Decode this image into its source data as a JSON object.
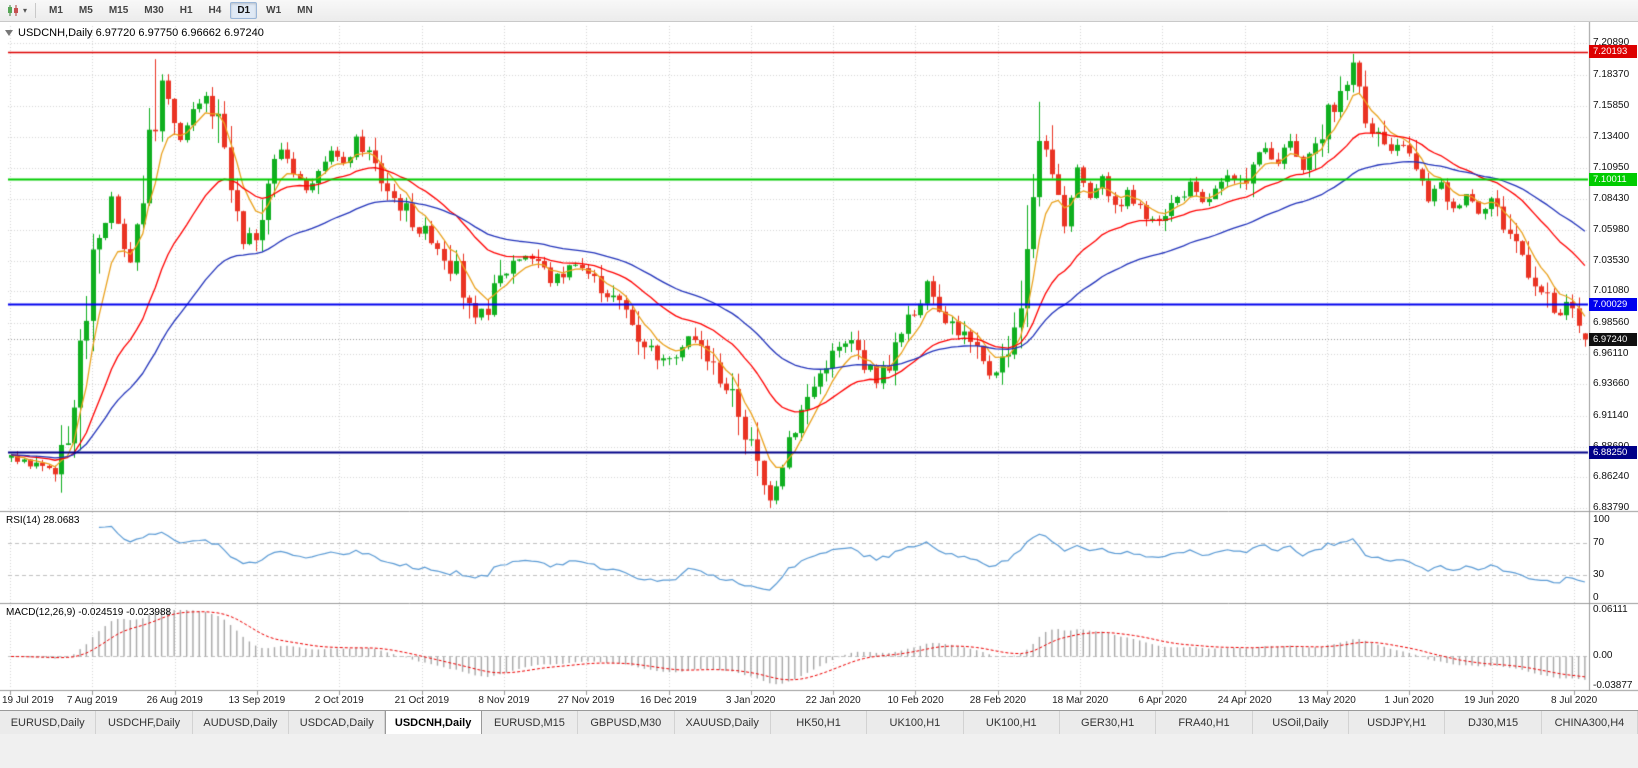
{
  "toolbar": {
    "chart_type_icon": "candlestick-chart-icon",
    "dropdown_icon": "chevron-down-icon",
    "timeframes": [
      {
        "label": "M1",
        "active": false
      },
      {
        "label": "M5",
        "active": false
      },
      {
        "label": "M15",
        "active": false
      },
      {
        "label": "M30",
        "active": false
      },
      {
        "label": "H1",
        "active": false
      },
      {
        "label": "H4",
        "active": false
      },
      {
        "label": "D1",
        "active": true
      },
      {
        "label": "W1",
        "active": false
      },
      {
        "label": "MN",
        "active": false
      }
    ]
  },
  "chart": {
    "title": "USDCNH,Daily 6.97720 6.97750 6.96662 6.97240",
    "symbol": "USDCNH",
    "period": "Daily",
    "price_axis_labels": [
      "7.20890",
      "7.18370",
      "7.15850",
      "7.13400",
      "7.10950",
      "7.08430",
      "7.05980",
      "7.03530",
      "7.01080",
      "6.98560",
      "6.96110",
      "6.93660",
      "6.91140",
      "6.88690",
      "6.86240",
      "6.83790"
    ],
    "date_axis_labels": [
      "19 Jul 2019",
      "7 Aug 2019",
      "26 Aug 2019",
      "13 Sep 2019",
      "2 Oct 2019",
      "21 Oct 2019",
      "8 Nov 2019",
      "27 Nov 2019",
      "16 Dec 2019",
      "3 Jan 2020",
      "22 Jan 2020",
      "10 Feb 2020",
      "28 Feb 2020",
      "18 Mar 2020",
      "6 Apr 2020",
      "24 Apr 2020",
      "13 May 2020",
      "1 Jun 2020",
      "19 Jun 2020",
      "8 Jul 2020"
    ],
    "levels": [
      {
        "label": "7.20193",
        "price": 7.20193,
        "color": "#dd0000",
        "width": 1.4
      },
      {
        "label": "7.10011",
        "price": 7.10011,
        "color": "#00cc00",
        "width": 2
      },
      {
        "label": "7.00029",
        "price": 7.00029,
        "color": "#0000ee",
        "width": 2
      },
      {
        "label": "6.88250",
        "price": 6.8825,
        "color": "#000088",
        "width": 2.2
      }
    ],
    "current_price": {
      "label": "6.97240",
      "price": 6.9724
    },
    "colors": {
      "up": "#0faf1f",
      "down": "#ea3323",
      "ma_fast": "#eaa21e",
      "ma_mid": "#ff0000",
      "ma_slow": "#2233bb",
      "grid": "#d6d6d6",
      "rsi_line": "#5b9bd5",
      "macd_hist": "#a8a8a8",
      "macd_signal": "#ee0000"
    }
  },
  "rsi_panel": {
    "label": "RSI(14) 28.0683",
    "value": "28.0683",
    "axis_labels": [
      "100",
      "70",
      "30",
      "0"
    ],
    "levels": [
      70,
      30
    ]
  },
  "macd_panel": {
    "label": "MACD(12,26,9) -0.024519 -0.023988",
    "values": [
      "-0.024519",
      "-0.023988"
    ],
    "axis_labels": [
      "0.06111",
      "0.00",
      "-0.03877"
    ],
    "range_top": 0.06111,
    "range_bottom": -0.03877
  },
  "tabs": [
    {
      "label": "EURUSD,Daily",
      "active": false
    },
    {
      "label": "USDCHF,Daily",
      "active": false
    },
    {
      "label": "AUDUSD,Daily",
      "active": false
    },
    {
      "label": "USDCAD,Daily",
      "active": false
    },
    {
      "label": "USDCNH,Daily",
      "active": true
    },
    {
      "label": "EURUSD,M15",
      "active": false
    },
    {
      "label": "GBPUSD,M30",
      "active": false
    },
    {
      "label": "XAUUSD,Daily",
      "active": false
    },
    {
      "label": "HK50,H1",
      "active": false
    },
    {
      "label": "UK100,H1",
      "active": false
    },
    {
      "label": "UK100,H1",
      "active": false
    },
    {
      "label": "GER30,H1",
      "active": false
    },
    {
      "label": "FRA40,H1",
      "active": false
    },
    {
      "label": "USOil,Daily",
      "active": false
    },
    {
      "label": "USDJPY,H1",
      "active": false
    },
    {
      "label": "DJ30,M15",
      "active": false
    },
    {
      "label": "CHINA300,H4",
      "active": false
    }
  ],
  "chart_data": {
    "type": "candlestick",
    "symbol": "USDCNH",
    "timeframe": "Daily",
    "last_bar": {
      "open": 6.9772,
      "high": 6.9775,
      "low": 6.96662,
      "close": 6.9724
    },
    "visible_price_range": [
      6.8379,
      7.2089
    ],
    "bars_visible": 252,
    "horizontal_lines": [
      7.20193,
      7.10011,
      7.00029,
      6.8825
    ],
    "indicators": {
      "rsi": {
        "period": 14,
        "current": 28.0683
      },
      "macd": {
        "fast": 12,
        "slow": 26,
        "signal": 9,
        "current": [
          -0.024519,
          -0.023988
        ]
      },
      "moving_averages": [
        {
          "type": "ema",
          "period": 6,
          "color": "#eaa21e"
        },
        {
          "type": "ema",
          "period": 22,
          "color": "#ff0000"
        },
        {
          "type": "ema",
          "period": 45,
          "color": "#2233bb"
        }
      ]
    },
    "price_path_anchors": [
      [
        0,
        6.878
      ],
      [
        4,
        6.873
      ],
      [
        7,
        6.869
      ],
      [
        9,
        6.885
      ],
      [
        10,
        6.925
      ],
      [
        12,
        6.995
      ],
      [
        14,
        7.055
      ],
      [
        16,
        7.085
      ],
      [
        17,
        7.06
      ],
      [
        19,
        7.04
      ],
      [
        21,
        7.09
      ],
      [
        23,
        7.15
      ],
      [
        24,
        7.175
      ],
      [
        25,
        7.16
      ],
      [
        27,
        7.135
      ],
      [
        29,
        7.15
      ],
      [
        31,
        7.165
      ],
      [
        33,
        7.14
      ],
      [
        35,
        7.09
      ],
      [
        37,
        7.045
      ],
      [
        39,
        7.06
      ],
      [
        41,
        7.1
      ],
      [
        43,
        7.125
      ],
      [
        45,
        7.11
      ],
      [
        47,
        7.09
      ],
      [
        49,
        7.115
      ],
      [
        51,
        7.125
      ],
      [
        53,
        7.11
      ],
      [
        55,
        7.13
      ],
      [
        57,
        7.12
      ],
      [
        59,
        7.1
      ],
      [
        61,
        7.085
      ],
      [
        63,
        7.075
      ],
      [
        65,
        7.06
      ],
      [
        67,
        7.055
      ],
      [
        69,
        7.04
      ],
      [
        71,
        7.025
      ],
      [
        73,
        6.995
      ],
      [
        74,
        6.985
      ],
      [
        76,
        7.0
      ],
      [
        78,
        7.02
      ],
      [
        80,
        7.035
      ],
      [
        82,
        7.04
      ],
      [
        84,
        7.035
      ],
      [
        86,
        7.02
      ],
      [
        88,
        7.025
      ],
      [
        90,
        7.035
      ],
      [
        92,
        7.025
      ],
      [
        94,
        7.015
      ],
      [
        96,
        7.005
      ],
      [
        98,
        6.995
      ],
      [
        100,
        6.975
      ],
      [
        102,
        6.965
      ],
      [
        104,
        6.955
      ],
      [
        106,
        6.965
      ],
      [
        108,
        6.975
      ],
      [
        110,
        6.965
      ],
      [
        112,
        6.95
      ],
      [
        114,
        6.935
      ],
      [
        116,
        6.915
      ],
      [
        118,
        6.885
      ],
      [
        120,
        6.855
      ],
      [
        121,
        6.848
      ],
      [
        122,
        6.862
      ],
      [
        124,
        6.895
      ],
      [
        126,
        6.915
      ],
      [
        128,
        6.935
      ],
      [
        130,
        6.955
      ],
      [
        132,
        6.965
      ],
      [
        134,
        6.97
      ],
      [
        136,
        6.955
      ],
      [
        138,
        6.94
      ],
      [
        140,
        6.955
      ],
      [
        142,
        6.975
      ],
      [
        144,
        6.995
      ],
      [
        146,
        7.015
      ],
      [
        148,
        7.0
      ],
      [
        150,
        6.985
      ],
      [
        152,
        6.975
      ],
      [
        154,
        6.96
      ],
      [
        156,
        6.945
      ],
      [
        158,
        6.955
      ],
      [
        160,
        6.985
      ],
      [
        162,
        7.03
      ],
      [
        163,
        7.09
      ],
      [
        164,
        7.14
      ],
      [
        165,
        7.12
      ],
      [
        166,
        7.095
      ],
      [
        168,
        7.065
      ],
      [
        170,
        7.11
      ],
      [
        172,
        7.085
      ],
      [
        174,
        7.105
      ],
      [
        176,
        7.075
      ],
      [
        178,
        7.09
      ],
      [
        180,
        7.075
      ],
      [
        182,
        7.065
      ],
      [
        184,
        7.075
      ],
      [
        186,
        7.085
      ],
      [
        188,
        7.095
      ],
      [
        190,
        7.08
      ],
      [
        192,
        7.09
      ],
      [
        194,
        7.1
      ],
      [
        196,
        7.095
      ],
      [
        198,
        7.11
      ],
      [
        200,
        7.125
      ],
      [
        202,
        7.115
      ],
      [
        204,
        7.13
      ],
      [
        206,
        7.105
      ],
      [
        208,
        7.125
      ],
      [
        210,
        7.15
      ],
      [
        212,
        7.17
      ],
      [
        214,
        7.19
      ],
      [
        215,
        7.175
      ],
      [
        216,
        7.155
      ],
      [
        218,
        7.135
      ],
      [
        220,
        7.12
      ],
      [
        222,
        7.13
      ],
      [
        224,
        7.105
      ],
      [
        226,
        7.085
      ],
      [
        228,
        7.095
      ],
      [
        230,
        7.075
      ],
      [
        232,
        7.09
      ],
      [
        234,
        7.075
      ],
      [
        236,
        7.085
      ],
      [
        238,
        7.065
      ],
      [
        240,
        7.05
      ],
      [
        242,
        7.03
      ],
      [
        244,
        7.01
      ],
      [
        246,
        6.995
      ],
      [
        247,
        6.988
      ],
      [
        248,
        7.0
      ],
      [
        249,
        6.995
      ],
      [
        250,
        6.985
      ],
      [
        251,
        6.9724
      ]
    ],
    "spikes": [
      {
        "bar": 23,
        "high": 7.196
      },
      {
        "bar": 121,
        "low": 6.838
      },
      {
        "bar": 164,
        "high": 7.162
      },
      {
        "bar": 214,
        "high": 7.1985
      }
    ]
  }
}
